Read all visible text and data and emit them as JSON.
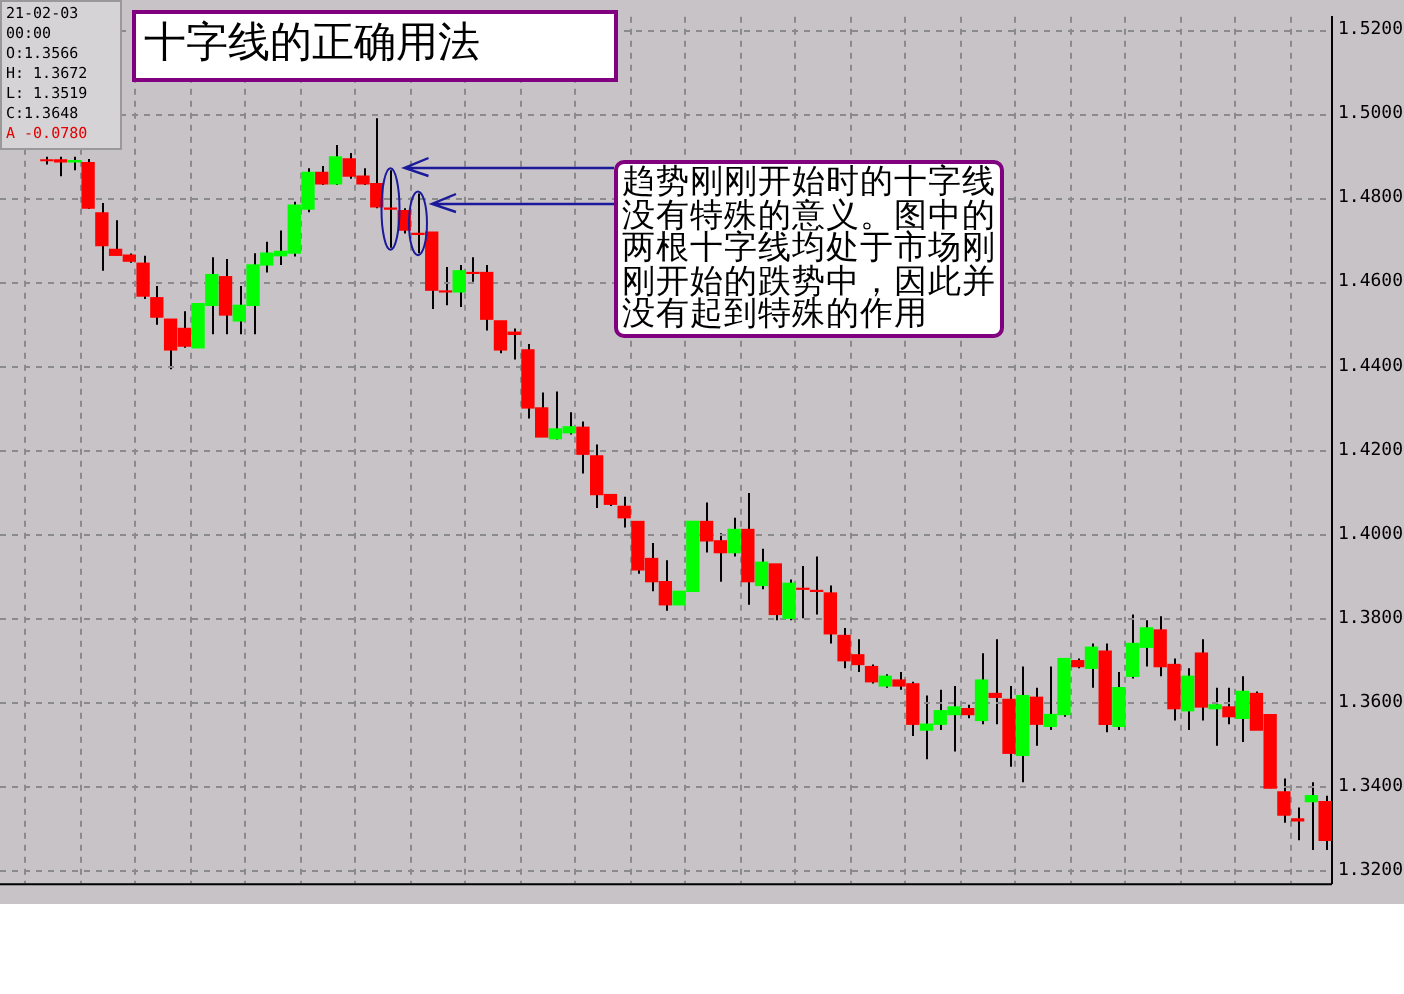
{
  "chart_data": {
    "type": "candlestick",
    "title": "十字线的正确用法",
    "annotations": [
      "趋势刚刚开始时的十字线没有特殊的意义。图中的两根十字线均处于市场刚刚开始的跌势中，因此并没有起到特殊的作用",
      "21-02-03",
      "00:00",
      "O:1.3566",
      "H: 1.3672",
      "L: 1.3519",
      "C:1.3648",
      "A -0.0780"
    ],
    "categories": [
      null,
      null,
      null,
      null,
      null,
      null,
      null,
      null,
      null,
      null,
      null,
      null,
      null,
      null,
      null,
      null,
      null,
      null,
      null,
      null,
      null,
      null,
      null,
      null,
      null,
      null,
      null,
      null,
      null,
      null,
      null,
      null,
      null,
      null,
      null,
      null,
      null,
      null,
      null,
      null,
      null,
      null,
      null,
      null,
      null,
      null,
      null,
      null,
      null,
      null,
      null,
      null,
      null,
      null,
      null,
      null,
      null,
      null,
      null,
      null,
      null,
      null,
      null,
      null,
      null,
      null,
      null,
      null,
      null,
      null,
      null,
      null,
      null,
      null,
      null,
      null,
      null,
      null,
      null,
      null,
      null,
      null,
      null,
      null,
      null,
      null,
      null,
      null,
      null,
      null,
      null,
      null,
      null,
      null
    ],
    "ohlc": [
      [
        1.489,
        1.4897,
        1.4879,
        1.4888
      ],
      [
        1.489,
        1.4897,
        1.4851,
        1.4885
      ],
      [
        1.4885,
        1.4897,
        1.4865,
        1.4888
      ],
      [
        1.4883,
        1.4892,
        1.4773,
        1.4775
      ],
      [
        1.4764,
        1.4787,
        1.4626,
        1.4686
      ],
      [
        1.4677,
        1.4746,
        1.4663,
        1.4663
      ],
      [
        1.4663,
        1.4667,
        1.4645,
        1.4649
      ],
      [
        1.4644,
        1.4662,
        1.4559,
        1.4566
      ],
      [
        1.4562,
        1.459,
        1.4498,
        1.4516
      ],
      [
        1.4511,
        1.4511,
        1.4392,
        1.4438
      ],
      [
        1.4489,
        1.453,
        1.4443,
        1.4447
      ],
      [
        1.4443,
        1.4548,
        1.4443,
        1.4548
      ],
      [
        1.4544,
        1.4658,
        1.4475,
        1.4617
      ],
      [
        1.4612,
        1.4654,
        1.4475,
        1.4521
      ],
      [
        1.4507,
        1.459,
        1.4475,
        1.4544
      ],
      [
        1.4544,
        1.4668,
        1.4475,
        1.464
      ],
      [
        1.464,
        1.4695,
        1.4622,
        1.4668
      ],
      [
        1.4662,
        1.4722,
        1.464,
        1.4672
      ],
      [
        1.4668,
        1.479,
        1.466,
        1.4782
      ],
      [
        1.4773,
        1.487,
        1.4765,
        1.486
      ],
      [
        1.486,
        1.4875,
        1.483,
        1.4833
      ],
      [
        1.4833,
        1.4925,
        1.483,
        1.4897
      ],
      [
        1.4892,
        1.4906,
        1.4845,
        1.4851
      ],
      [
        1.4851,
        1.487,
        1.483,
        1.4833
      ],
      [
        1.4833,
        1.4989,
        1.4775,
        1.4778
      ],
      [
        1.4775,
        1.4865,
        1.4681,
        1.4773
      ],
      [
        1.4769,
        1.4775,
        1.4715,
        1.4723
      ],
      [
        1.4715,
        1.481,
        1.4668,
        1.4713
      ],
      [
        1.4718,
        1.4718,
        1.4535,
        1.458
      ],
      [
        1.4578,
        1.4635,
        1.4544,
        1.4576
      ],
      [
        1.4576,
        1.464,
        1.454,
        1.4626
      ],
      [
        1.4622,
        1.4658,
        1.46,
        1.462
      ],
      [
        1.4622,
        1.464,
        1.4484,
        1.4511
      ],
      [
        1.4507,
        1.4507,
        1.443,
        1.4438
      ],
      [
        1.448,
        1.4489,
        1.4415,
        1.4475
      ],
      [
        1.4438,
        1.4452,
        1.4275,
        1.43
      ],
      [
        1.43,
        1.4337,
        1.4231,
        1.4231
      ],
      [
        1.4227,
        1.4339,
        1.4225,
        1.425
      ],
      [
        1.4241,
        1.429,
        1.4237,
        1.4255
      ],
      [
        1.4254,
        1.4268,
        1.4144,
        1.419
      ],
      [
        1.4186,
        1.4213,
        1.4062,
        1.4094
      ],
      [
        1.4094,
        1.4094,
        1.4067,
        1.4071
      ],
      [
        1.4066,
        1.4089,
        1.4016,
        1.4039
      ],
      [
        1.403,
        1.403,
        1.3906,
        1.3915
      ],
      [
        1.3942,
        1.3979,
        1.3864,
        1.3887
      ],
      [
        1.3887,
        1.3938,
        1.3818,
        1.3832
      ],
      [
        1.3832,
        1.3864,
        1.3832,
        1.3864
      ],
      [
        1.3864,
        1.403,
        1.3864,
        1.403
      ],
      [
        1.403,
        1.4075,
        1.3956,
        1.3984
      ],
      [
        1.3984,
        1.4002,
        1.3887,
        1.3956
      ],
      [
        1.3956,
        1.4039,
        1.3947,
        1.4011
      ],
      [
        1.4011,
        1.4098,
        1.3832,
        1.3887
      ],
      [
        1.3878,
        1.3965,
        1.3869,
        1.3933
      ],
      [
        1.3929,
        1.3929,
        1.3795,
        1.3809
      ],
      [
        1.38,
        1.3892,
        1.3795,
        1.3883
      ],
      [
        1.3871,
        1.3924,
        1.38,
        1.3869
      ],
      [
        1.3866,
        1.3947,
        1.3809,
        1.3864
      ],
      [
        1.386,
        1.3878,
        1.374,
        1.3763
      ],
      [
        1.3759,
        1.3777,
        1.3681,
        1.3699
      ],
      [
        1.3713,
        1.375,
        1.3672,
        1.369
      ],
      [
        1.3685,
        1.369,
        1.3645,
        1.3649
      ],
      [
        1.3639,
        1.3667,
        1.3635,
        1.3662
      ],
      [
        1.3653,
        1.3672,
        1.363,
        1.3639
      ],
      [
        1.3644,
        1.3649,
        1.352,
        1.3548
      ],
      [
        1.3534,
        1.3616,
        1.3465,
        1.3548
      ],
      [
        1.3548,
        1.363,
        1.3534,
        1.358
      ],
      [
        1.3571,
        1.3639,
        1.3483,
        1.3589
      ],
      [
        1.3585,
        1.3594,
        1.3562,
        1.3571
      ],
      [
        1.3557,
        1.3717,
        1.3548,
        1.3653
      ],
      [
        1.3621,
        1.375,
        1.3548,
        1.3612
      ],
      [
        1.3607,
        1.3639,
        1.3447,
        1.3479
      ],
      [
        1.3474,
        1.3685,
        1.341,
        1.3616
      ],
      [
        1.3612,
        1.3635,
        1.3497,
        1.3548
      ],
      [
        1.3543,
        1.3685,
        1.3534,
        1.3571
      ],
      [
        1.3571,
        1.3704,
        1.3566,
        1.3704
      ],
      [
        1.3699,
        1.3704,
        1.3681,
        1.3685
      ],
      [
        1.3681,
        1.374,
        1.3635,
        1.3731
      ],
      [
        1.3722,
        1.374,
        1.3529,
        1.3548
      ],
      [
        1.3543,
        1.3672,
        1.3534,
        1.3635
      ],
      [
        1.3662,
        1.3809,
        1.3657,
        1.374
      ],
      [
        1.3731,
        1.3795,
        1.3685,
        1.3777
      ],
      [
        1.3772,
        1.3805,
        1.3662,
        1.3685
      ],
      [
        1.369,
        1.3704,
        1.3557,
        1.3585
      ],
      [
        1.358,
        1.3681,
        1.3534,
        1.3662
      ],
      [
        1.3717,
        1.375,
        1.3557,
        1.3589
      ],
      [
        1.3585,
        1.3635,
        1.3497,
        1.3594
      ],
      [
        1.3589,
        1.3635,
        1.3548,
        1.3566
      ],
      [
        1.3562,
        1.3662,
        1.3506,
        1.3626
      ],
      [
        1.3621,
        1.3626,
        1.3534,
        1.3534
      ],
      [
        1.3571,
        1.3571,
        1.3396,
        1.3396
      ],
      [
        1.3387,
        1.3419,
        1.3314,
        1.3332
      ],
      [
        1.3323,
        1.335,
        1.3272,
        1.3318
      ],
      [
        1.3364,
        1.341,
        1.3249,
        1.3378
      ],
      [
        1.3364,
        1.3378,
        1.3249,
        1.3272
      ]
    ],
    "colors": [
      "#ff0000",
      "#ff0000",
      "#00ff00",
      "#ff0000",
      "#ff0000",
      "#ff0000",
      "#ff0000",
      "#ff0000",
      "#ff0000",
      "#ff0000",
      "#ff0000",
      "#00ff00",
      "#00ff00",
      "#ff0000",
      "#00ff00",
      "#00ff00",
      "#00ff00",
      "#00ff00",
      "#00ff00",
      "#00ff00",
      "#ff0000",
      "#00ff00",
      "#ff0000",
      "#ff0000",
      "#ff0000",
      "#ff0000",
      "#ff0000",
      "#ff0000",
      "#ff0000",
      "#ff0000",
      "#00ff00",
      "#ff0000",
      "#ff0000",
      "#ff0000",
      "#ff0000",
      "#ff0000",
      "#ff0000",
      "#00ff00",
      "#00ff00",
      "#ff0000",
      "#ff0000",
      "#ff0000",
      "#ff0000",
      "#ff0000",
      "#ff0000",
      "#ff0000",
      "#00ff00",
      "#00ff00",
      "#ff0000",
      "#ff0000",
      "#00ff00",
      "#ff0000",
      "#00ff00",
      "#ff0000",
      "#00ff00",
      "#ff0000",
      "#ff0000",
      "#ff0000",
      "#ff0000",
      "#ff0000",
      "#ff0000",
      "#00ff00",
      "#ff0000",
      "#ff0000",
      "#00ff00",
      "#00ff00",
      "#00ff00",
      "#ff0000",
      "#00ff00",
      "#ff0000",
      "#ff0000",
      "#00ff00",
      "#ff0000",
      "#00ff00",
      "#00ff00",
      "#ff0000",
      "#00ff00",
      "#ff0000",
      "#00ff00",
      "#00ff00",
      "#00ff00",
      "#ff0000",
      "#ff0000",
      "#00ff00",
      "#ff0000",
      "#00ff00",
      "#ff0000",
      "#00ff00",
      "#ff0000",
      "#ff0000",
      "#ff0000",
      "#ff0000",
      "#00ff00",
      "#ff0000"
    ],
    "ylim": [
      1.317,
      1.523
    ],
    "yticks": [
      {
        "value": 1.52,
        "label": "1.5200"
      },
      {
        "value": 1.5,
        "label": "1.5000"
      },
      {
        "value": 1.48,
        "label": "1.4800"
      },
      {
        "value": 1.46,
        "label": "1.4600"
      },
      {
        "value": 1.44,
        "label": "1.4400"
      },
      {
        "value": 1.42,
        "label": "1.4200"
      },
      {
        "value": 1.4,
        "label": "1.4000"
      },
      {
        "value": 1.38,
        "label": "1.3800"
      },
      {
        "value": 1.36,
        "label": "1.3600"
      },
      {
        "value": 1.34,
        "label": "1.3400"
      },
      {
        "value": 1.32,
        "label": "1.3200"
      }
    ],
    "grid": true,
    "tick_labels": "y"
  }
}
